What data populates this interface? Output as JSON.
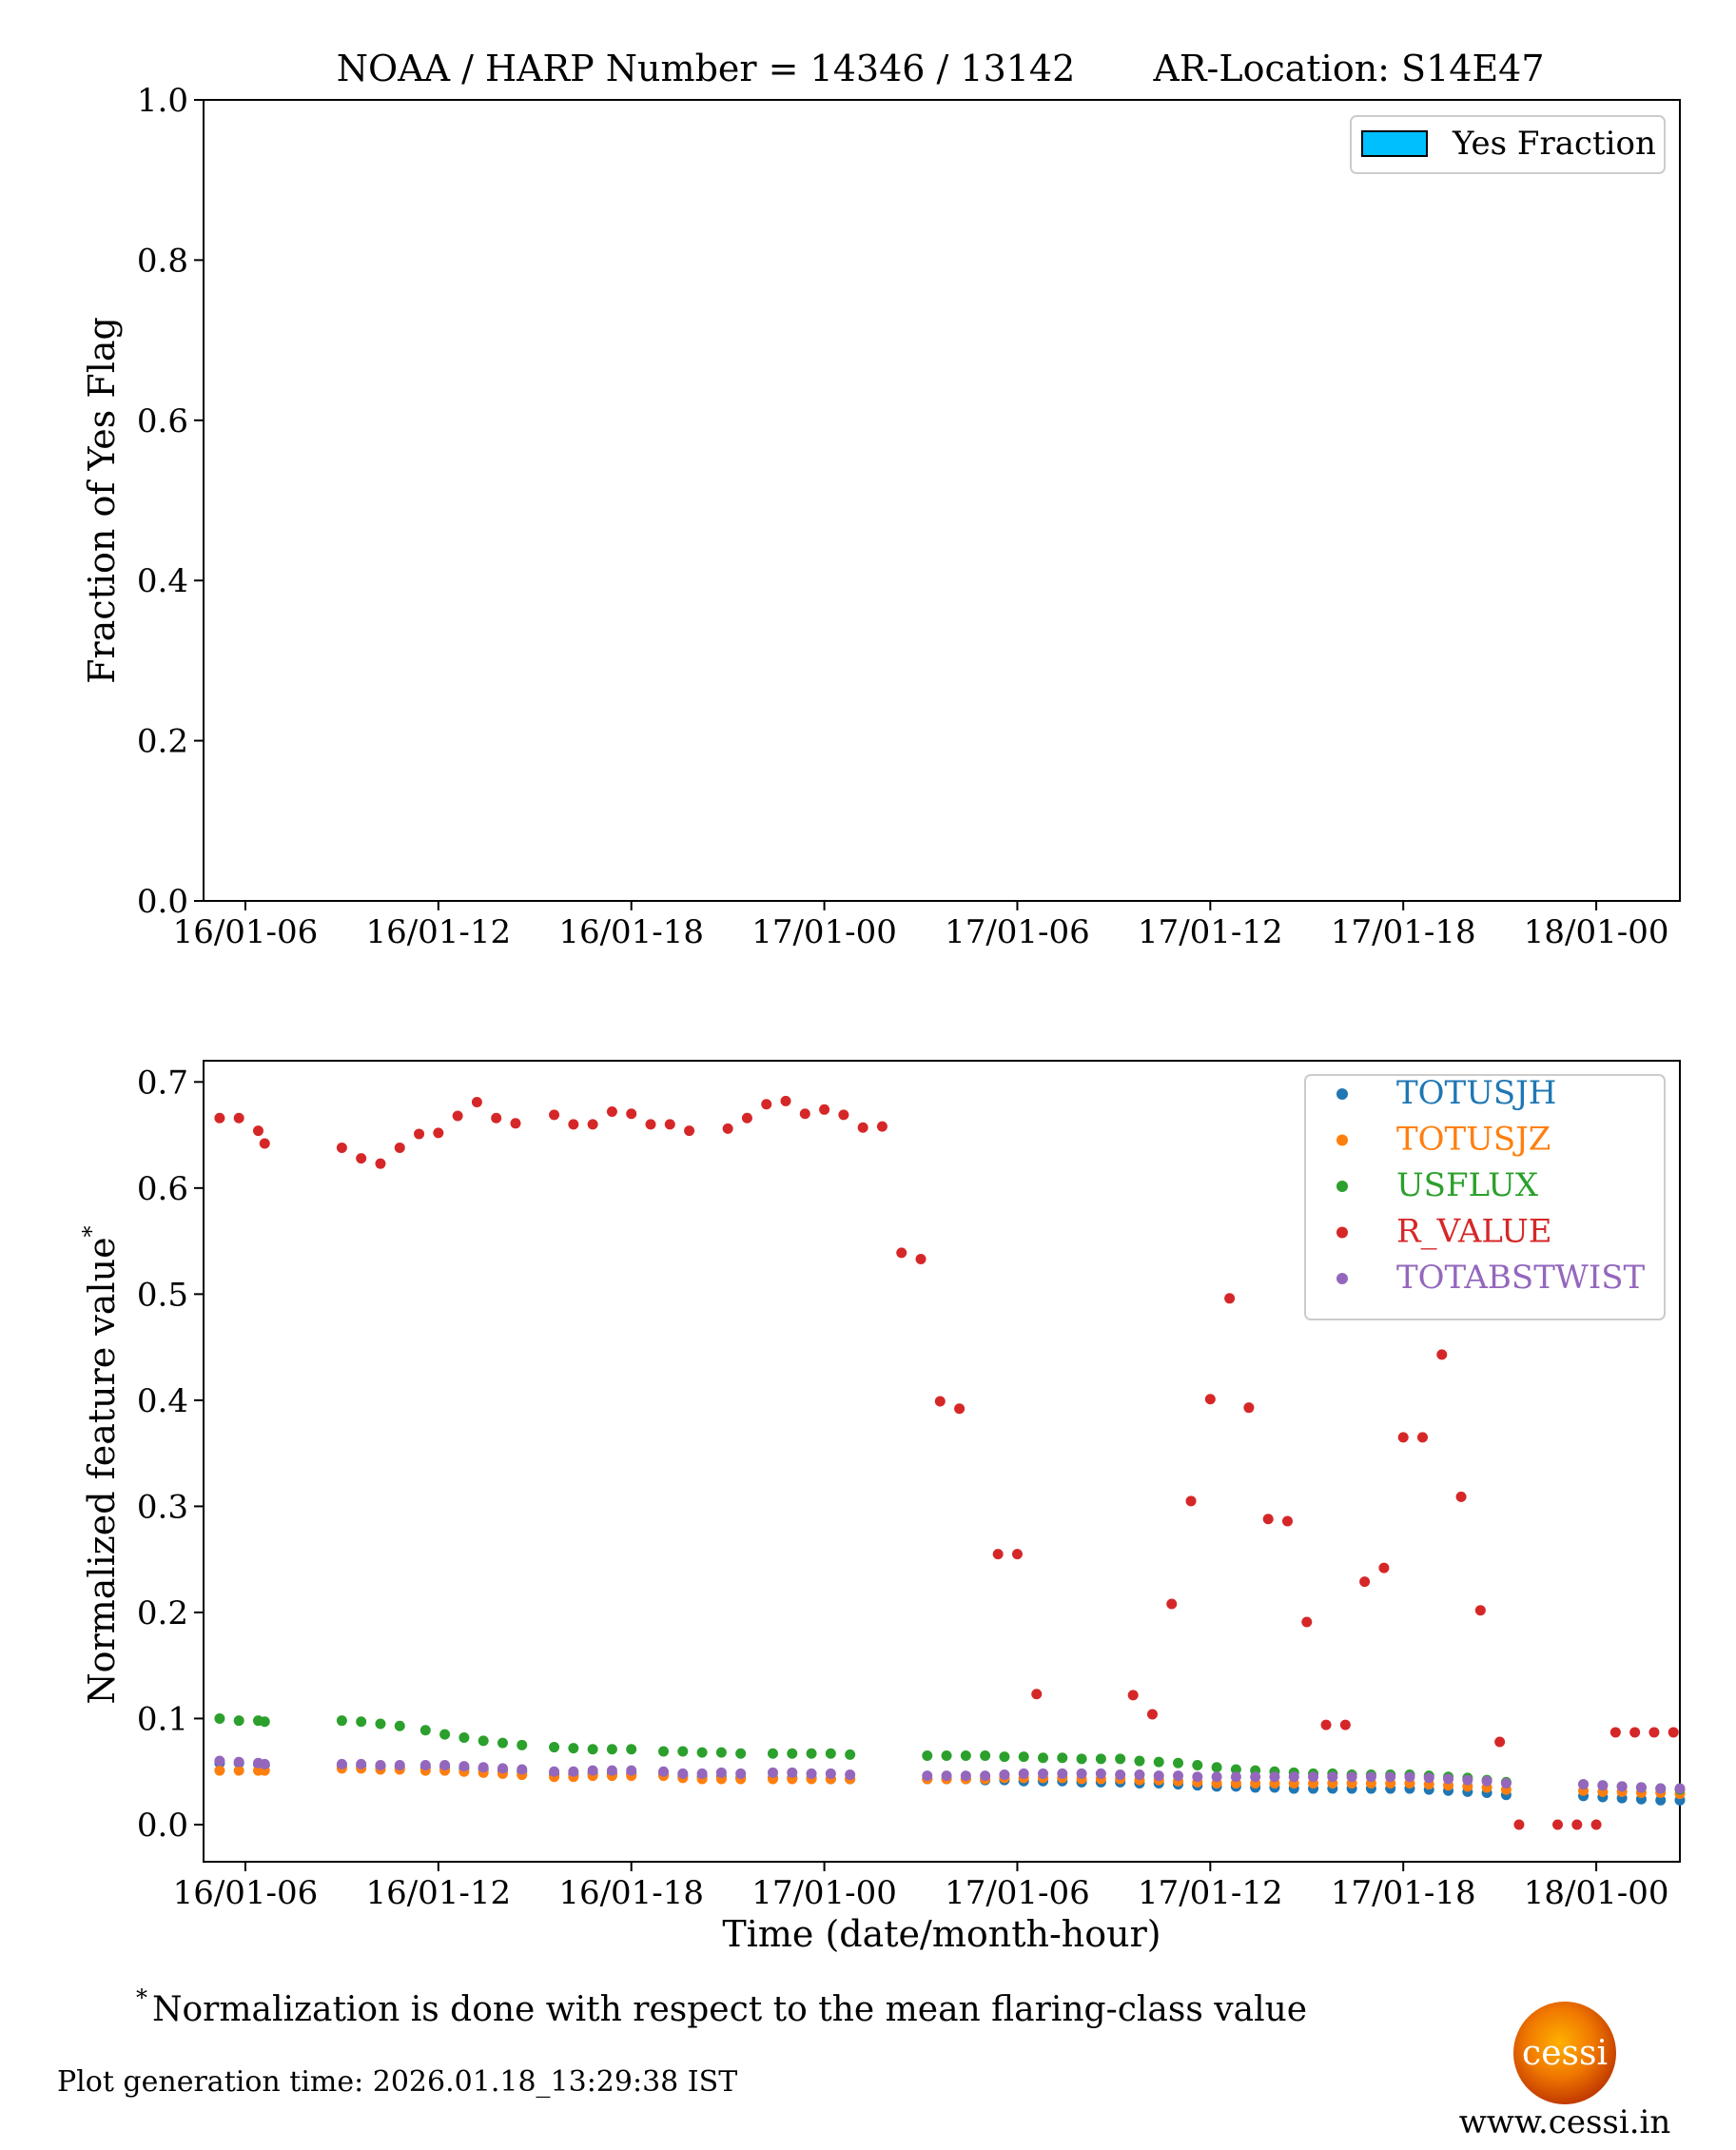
{
  "colors": {
    "TOTUSJH": "#1f77b4",
    "TOTUSJZ": "#ff7f0e",
    "USFLUX": "#2ca02c",
    "R_VALUE": "#d62728",
    "TOTABSTWIST": "#9467bd",
    "yes_fraction": "#00bfff"
  },
  "header": {
    "noaa_harp": "NOAA / HARP Number = 14346 / 13142",
    "ar_location": "AR-Location: S14E47"
  },
  "footnote": {
    "star": "*",
    "text": "Normalization is done with respect to the mean flaring-class value"
  },
  "plot_generation": "Plot generation time: 2026.01.18_13:29:38 IST",
  "logo": {
    "text": "cessi",
    "url_text": "www.cessi.in"
  },
  "chart_data": [
    {
      "type": "bar",
      "title": "",
      "xlabel": "",
      "ylabel": "Fraction of Yes Flag",
      "ylim": [
        0,
        1.0
      ],
      "xlim_hours": [
        -1.3,
        44.6
      ],
      "x_tick_hours": [
        0,
        6,
        12,
        18,
        24,
        30,
        36,
        42
      ],
      "x_tick_labels": [
        "16/01-06",
        "16/01-12",
        "16/01-18",
        "17/01-00",
        "17/01-06",
        "17/01-12",
        "17/01-18",
        "18/01-00"
      ],
      "y_ticks": [
        0.0,
        0.2,
        0.4,
        0.6,
        0.8,
        1.0
      ],
      "y_tick_labels": [
        "0.0",
        "0.2",
        "0.4",
        "0.6",
        "0.8",
        "1.0"
      ],
      "legend": [
        "Yes Fraction"
      ],
      "legend_position": "top-right",
      "values": []
    },
    {
      "type": "scatter",
      "xlabel": "Time (date/month-hour)",
      "ylabel": "Normalized feature value",
      "ylabel_star": "*",
      "ylim": [
        -0.035,
        0.72
      ],
      "xlim_hours": [
        -1.3,
        44.6
      ],
      "x_tick_hours": [
        0,
        6,
        12,
        18,
        24,
        30,
        36,
        42
      ],
      "x_tick_labels": [
        "16/01-06",
        "16/01-12",
        "16/01-18",
        "17/01-00",
        "17/01-06",
        "17/01-12",
        "17/01-18",
        "18/01-00"
      ],
      "y_ticks": [
        0.0,
        0.1,
        0.2,
        0.3,
        0.4,
        0.5,
        0.6,
        0.7
      ],
      "y_tick_labels": [
        "0.0",
        "0.1",
        "0.2",
        "0.3",
        "0.4",
        "0.5",
        "0.6",
        "0.7"
      ],
      "legend_position": "top-right",
      "x_hours": [
        -0.8,
        -0.2,
        0.4,
        0.6,
        3.0,
        3.6,
        4.2,
        4.8,
        5.6,
        6.2,
        6.8,
        7.4,
        8.0,
        8.6,
        9.6,
        10.2,
        10.8,
        11.4,
        12.0,
        13.0,
        13.6,
        14.2,
        14.8,
        15.4,
        16.4,
        17.0,
        17.6,
        18.2,
        18.8,
        21.2,
        21.8,
        22.4,
        23.0,
        23.6,
        24.2,
        24.8,
        25.4,
        26.0,
        26.6,
        27.2,
        27.8,
        28.4,
        29.0,
        29.6,
        30.2,
        30.8,
        31.4,
        32.0,
        32.6,
        33.2,
        33.8,
        34.4,
        35.0,
        35.6,
        36.2,
        36.8,
        37.4,
        38.0,
        38.6,
        39.2,
        41.6,
        42.2,
        42.8,
        43.4,
        44.0,
        44.6
      ],
      "series": [
        {
          "name": "TOTUSJH",
          "values": [
            0.058,
            0.058,
            0.057,
            0.056,
            0.055,
            0.055,
            0.055,
            0.054,
            0.054,
            0.054,
            0.053,
            0.052,
            0.051,
            0.05,
            0.047,
            0.047,
            0.048,
            0.048,
            0.048,
            0.047,
            0.046,
            0.045,
            0.045,
            0.044,
            0.044,
            0.044,
            0.044,
            0.043,
            0.043,
            0.043,
            0.043,
            0.043,
            0.042,
            0.042,
            0.041,
            0.041,
            0.041,
            0.04,
            0.04,
            0.04,
            0.039,
            0.039,
            0.038,
            0.037,
            0.036,
            0.036,
            0.035,
            0.035,
            0.034,
            0.034,
            0.034,
            0.034,
            0.034,
            0.034,
            0.034,
            0.033,
            0.032,
            0.031,
            0.03,
            0.028,
            0.027,
            0.026,
            0.025,
            0.024,
            0.023,
            0.023
          ]
        },
        {
          "name": "TOTUSJZ",
          "values": [
            0.051,
            0.051,
            0.051,
            0.051,
            0.053,
            0.053,
            0.052,
            0.052,
            0.051,
            0.051,
            0.05,
            0.049,
            0.048,
            0.047,
            0.045,
            0.045,
            0.046,
            0.046,
            0.046,
            0.046,
            0.044,
            0.043,
            0.043,
            0.043,
            0.043,
            0.043,
            0.043,
            0.043,
            0.043,
            0.043,
            0.043,
            0.043,
            0.043,
            0.044,
            0.044,
            0.044,
            0.044,
            0.043,
            0.043,
            0.043,
            0.042,
            0.042,
            0.041,
            0.04,
            0.039,
            0.039,
            0.039,
            0.039,
            0.039,
            0.039,
            0.039,
            0.039,
            0.039,
            0.039,
            0.039,
            0.038,
            0.037,
            0.036,
            0.035,
            0.033,
            0.032,
            0.031,
            0.031,
            0.03,
            0.03,
            0.029
          ]
        },
        {
          "name": "USFLUX",
          "values": [
            0.1,
            0.098,
            0.098,
            0.097,
            0.098,
            0.097,
            0.095,
            0.093,
            0.089,
            0.085,
            0.082,
            0.079,
            0.077,
            0.075,
            0.073,
            0.072,
            0.071,
            0.071,
            0.071,
            0.069,
            0.069,
            0.068,
            0.068,
            0.067,
            0.067,
            0.067,
            0.067,
            0.067,
            0.066,
            0.065,
            0.065,
            0.065,
            0.065,
            0.064,
            0.064,
            0.063,
            0.063,
            0.062,
            0.062,
            0.062,
            0.06,
            0.059,
            0.058,
            0.056,
            0.054,
            0.052,
            0.051,
            0.05,
            0.049,
            0.048,
            0.048,
            0.047,
            0.047,
            0.047,
            0.047,
            0.046,
            0.045,
            0.044,
            0.042,
            0.04,
            0.038,
            0.037,
            0.036,
            0.035,
            0.034,
            0.033
          ]
        },
        {
          "name": "R_VALUE",
          "values": [
            0.666,
            0.666,
            0.654,
            0.642,
            0.638,
            0.628,
            0.623,
            0.638,
            0.651,
            0.652,
            0.668,
            0.681,
            0.666,
            0.661,
            0.669,
            0.66,
            0.66,
            0.672,
            0.67,
            0.66,
            0.66,
            0.654,
            0.656,
            0.666,
            0.679,
            0.682,
            0.67,
            0.674,
            0.669,
            0.657,
            0.658,
            0.539,
            0.533,
            0.399,
            0.392,
            0.255,
            0.255,
            0.123,
            0.122,
            0.104,
            0.208,
            0.305,
            0.401,
            0.496,
            0.393,
            0.288,
            0.286,
            0.191,
            0.094,
            0.094,
            0.229,
            0.242,
            0.365,
            0.365,
            0.443,
            0.309,
            0.202,
            0.078,
            0.0,
            0.0,
            0.0,
            0.0,
            0.087,
            0.087,
            0.087,
            0.087
          ],
          "x_hours": [
            -0.8,
            -0.2,
            0.4,
            0.6,
            3.0,
            3.6,
            4.2,
            4.8,
            5.4,
            6.0,
            6.6,
            7.2,
            7.8,
            8.4,
            9.6,
            10.2,
            10.8,
            11.4,
            12.0,
            12.6,
            13.2,
            13.8,
            15.0,
            15.6,
            16.2,
            16.8,
            17.4,
            18.0,
            18.6,
            19.2,
            19.8,
            20.4,
            21.0,
            21.6,
            22.2,
            23.4,
            24.0,
            24.6,
            27.6,
            28.2,
            28.8,
            29.4,
            30.0,
            30.6,
            31.2,
            31.8,
            32.4,
            33.0,
            33.6,
            34.2,
            34.8,
            35.4,
            36.0,
            36.6,
            37.2,
            37.8,
            38.4,
            39.0,
            39.6,
            40.8,
            41.4,
            42.0,
            42.6,
            43.2,
            43.8,
            44.4
          ]
        },
        {
          "name": "TOTABSTWIST",
          "values": [
            0.06,
            0.059,
            0.058,
            0.057,
            0.057,
            0.057,
            0.056,
            0.056,
            0.056,
            0.056,
            0.055,
            0.054,
            0.053,
            0.052,
            0.05,
            0.05,
            0.051,
            0.051,
            0.051,
            0.05,
            0.048,
            0.048,
            0.049,
            0.048,
            0.049,
            0.049,
            0.048,
            0.048,
            0.047,
            0.046,
            0.046,
            0.046,
            0.046,
            0.047,
            0.048,
            0.048,
            0.048,
            0.048,
            0.048,
            0.047,
            0.047,
            0.046,
            0.046,
            0.045,
            0.045,
            0.045,
            0.045,
            0.045,
            0.045,
            0.045,
            0.045,
            0.045,
            0.045,
            0.045,
            0.045,
            0.044,
            0.043,
            0.042,
            0.041,
            0.039,
            0.038,
            0.037,
            0.036,
            0.035,
            0.034,
            0.034
          ]
        }
      ]
    }
  ]
}
